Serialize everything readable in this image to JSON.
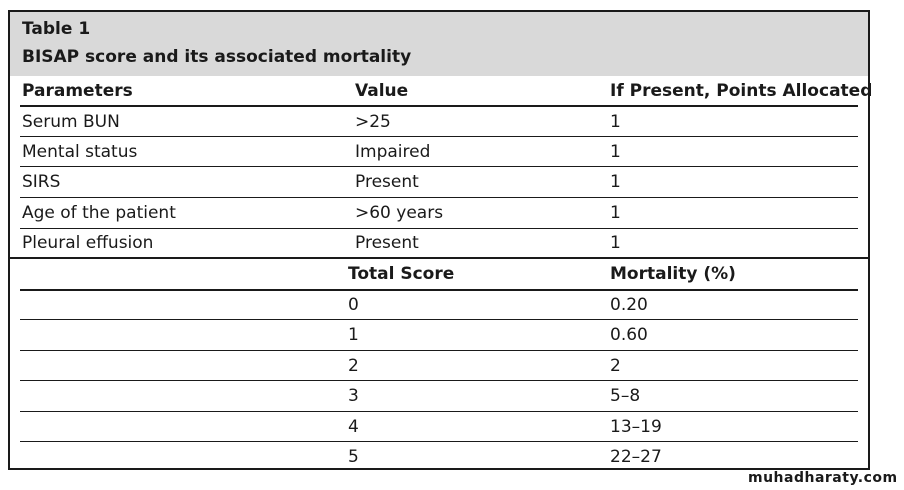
{
  "caption": {
    "title": "Table 1",
    "subtitle": "BISAP score and its associated mortality"
  },
  "parameters_table": {
    "headers": [
      "Parameters",
      "Value",
      "If Present, Points Allocated"
    ],
    "rows": [
      [
        "Serum BUN",
        ">25",
        "1"
      ],
      [
        "Mental status",
        "Impaired",
        "1"
      ],
      [
        "SIRS",
        "Present",
        "1"
      ],
      [
        "Age of the patient",
        ">60 years",
        "1"
      ],
      [
        "Pleural effusion",
        "Present",
        "1"
      ]
    ]
  },
  "mortality_table": {
    "headers": [
      "Total Score",
      "Mortality (%)"
    ],
    "rows": [
      [
        "0",
        "0.20"
      ],
      [
        "1",
        "0.60"
      ],
      [
        "2",
        "2"
      ],
      [
        "3",
        "5–8"
      ],
      [
        "4",
        "13–19"
      ],
      [
        "5",
        "22–27"
      ]
    ]
  },
  "watermark": "muhadharaty.com"
}
